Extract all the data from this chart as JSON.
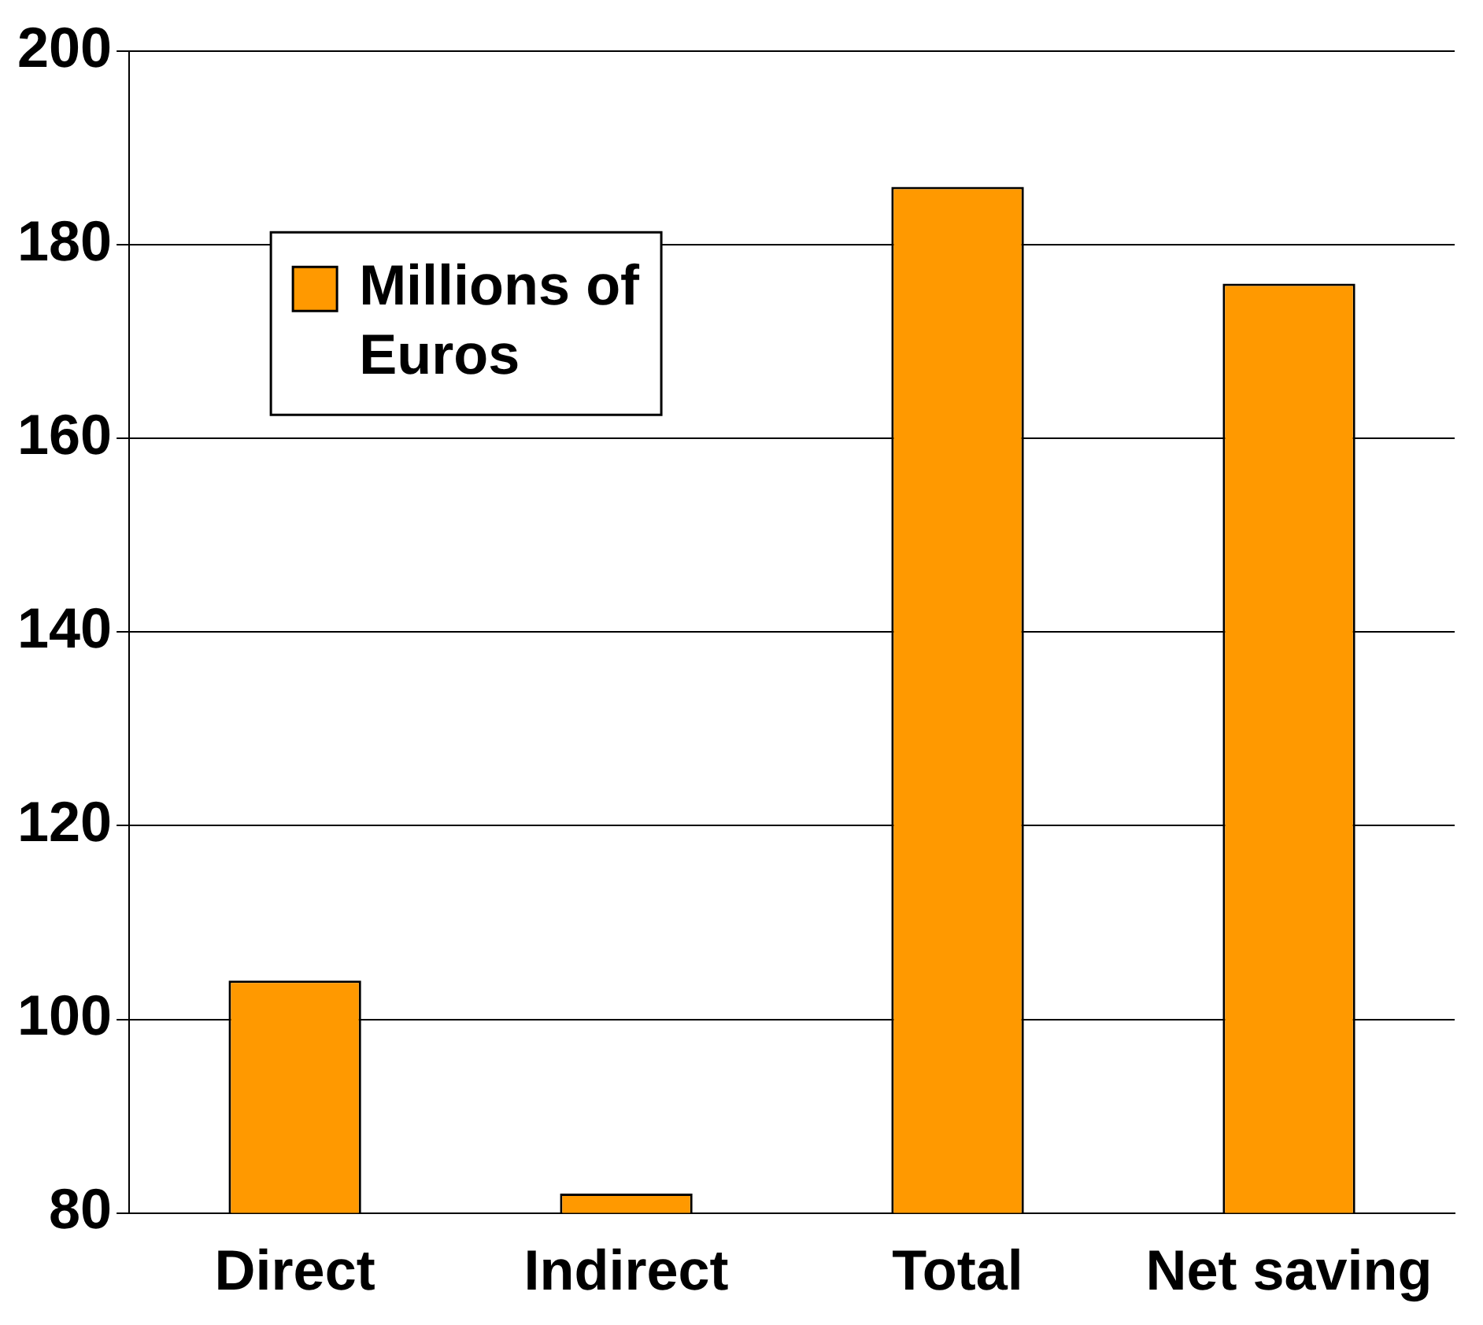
{
  "chart_data": {
    "type": "bar",
    "categories": [
      "Direct",
      "Indirect",
      "Total",
      "Net saving"
    ],
    "series": [
      {
        "name": "Millions of Euros",
        "color": "#ff9900",
        "values": [
          104,
          82,
          186,
          176
        ]
      }
    ],
    "ylim": [
      80,
      200
    ],
    "yticks": [
      80,
      100,
      120,
      140,
      160,
      180,
      200
    ],
    "grid": "y",
    "legend": "top left"
  }
}
